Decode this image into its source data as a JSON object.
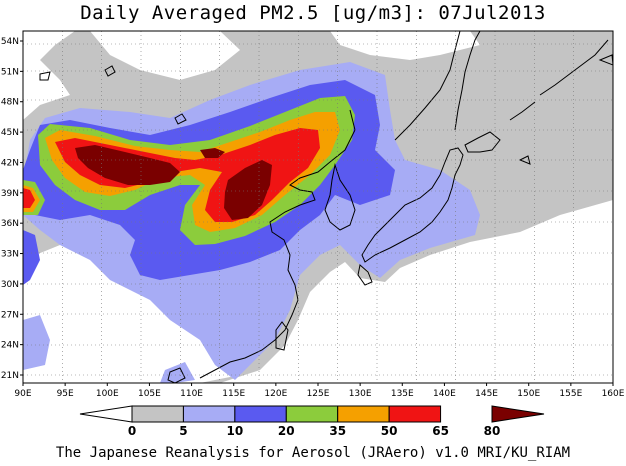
{
  "title": "Daily Averaged PM2.5 [ug/m3]: 07Jul2013",
  "credit": "The Japanese Reanalysis for Aerosol (JRAero) v1.0 MRI/KU_RIAM",
  "map": {
    "lon_labels": [
      "90E",
      "95E",
      "100E",
      "105E",
      "110E",
      "115E",
      "120E",
      "125E",
      "130E",
      "135E",
      "140E",
      "145E",
      "150E",
      "155E",
      "160E"
    ],
    "lat_labels": [
      "21N",
      "24N",
      "27N",
      "30N",
      "33N",
      "36N",
      "39N",
      "42N",
      "45N",
      "48N",
      "51N",
      "54N"
    ]
  },
  "colorbar": {
    "levels": [
      "0",
      "5",
      "10",
      "20",
      "35",
      "50",
      "65",
      "80"
    ],
    "colors": [
      "#ffffff",
      "#c4c4c4",
      "#a7acf5",
      "#5a5af0",
      "#8ccc3c",
      "#f5a000",
      "#f01414",
      "#7a0000"
    ]
  },
  "colors": {
    "bin_0_5": "#ffffff",
    "bin_5_10": "#c4c4c4",
    "bin_10_20": "#a7acf5",
    "bin_20_35": "#5a5af0",
    "bin_35_50": "#8ccc3c",
    "bin_50_65": "#f5a000",
    "bin_65_80": "#f01414",
    "bin_80_plus": "#7a0000"
  }
}
